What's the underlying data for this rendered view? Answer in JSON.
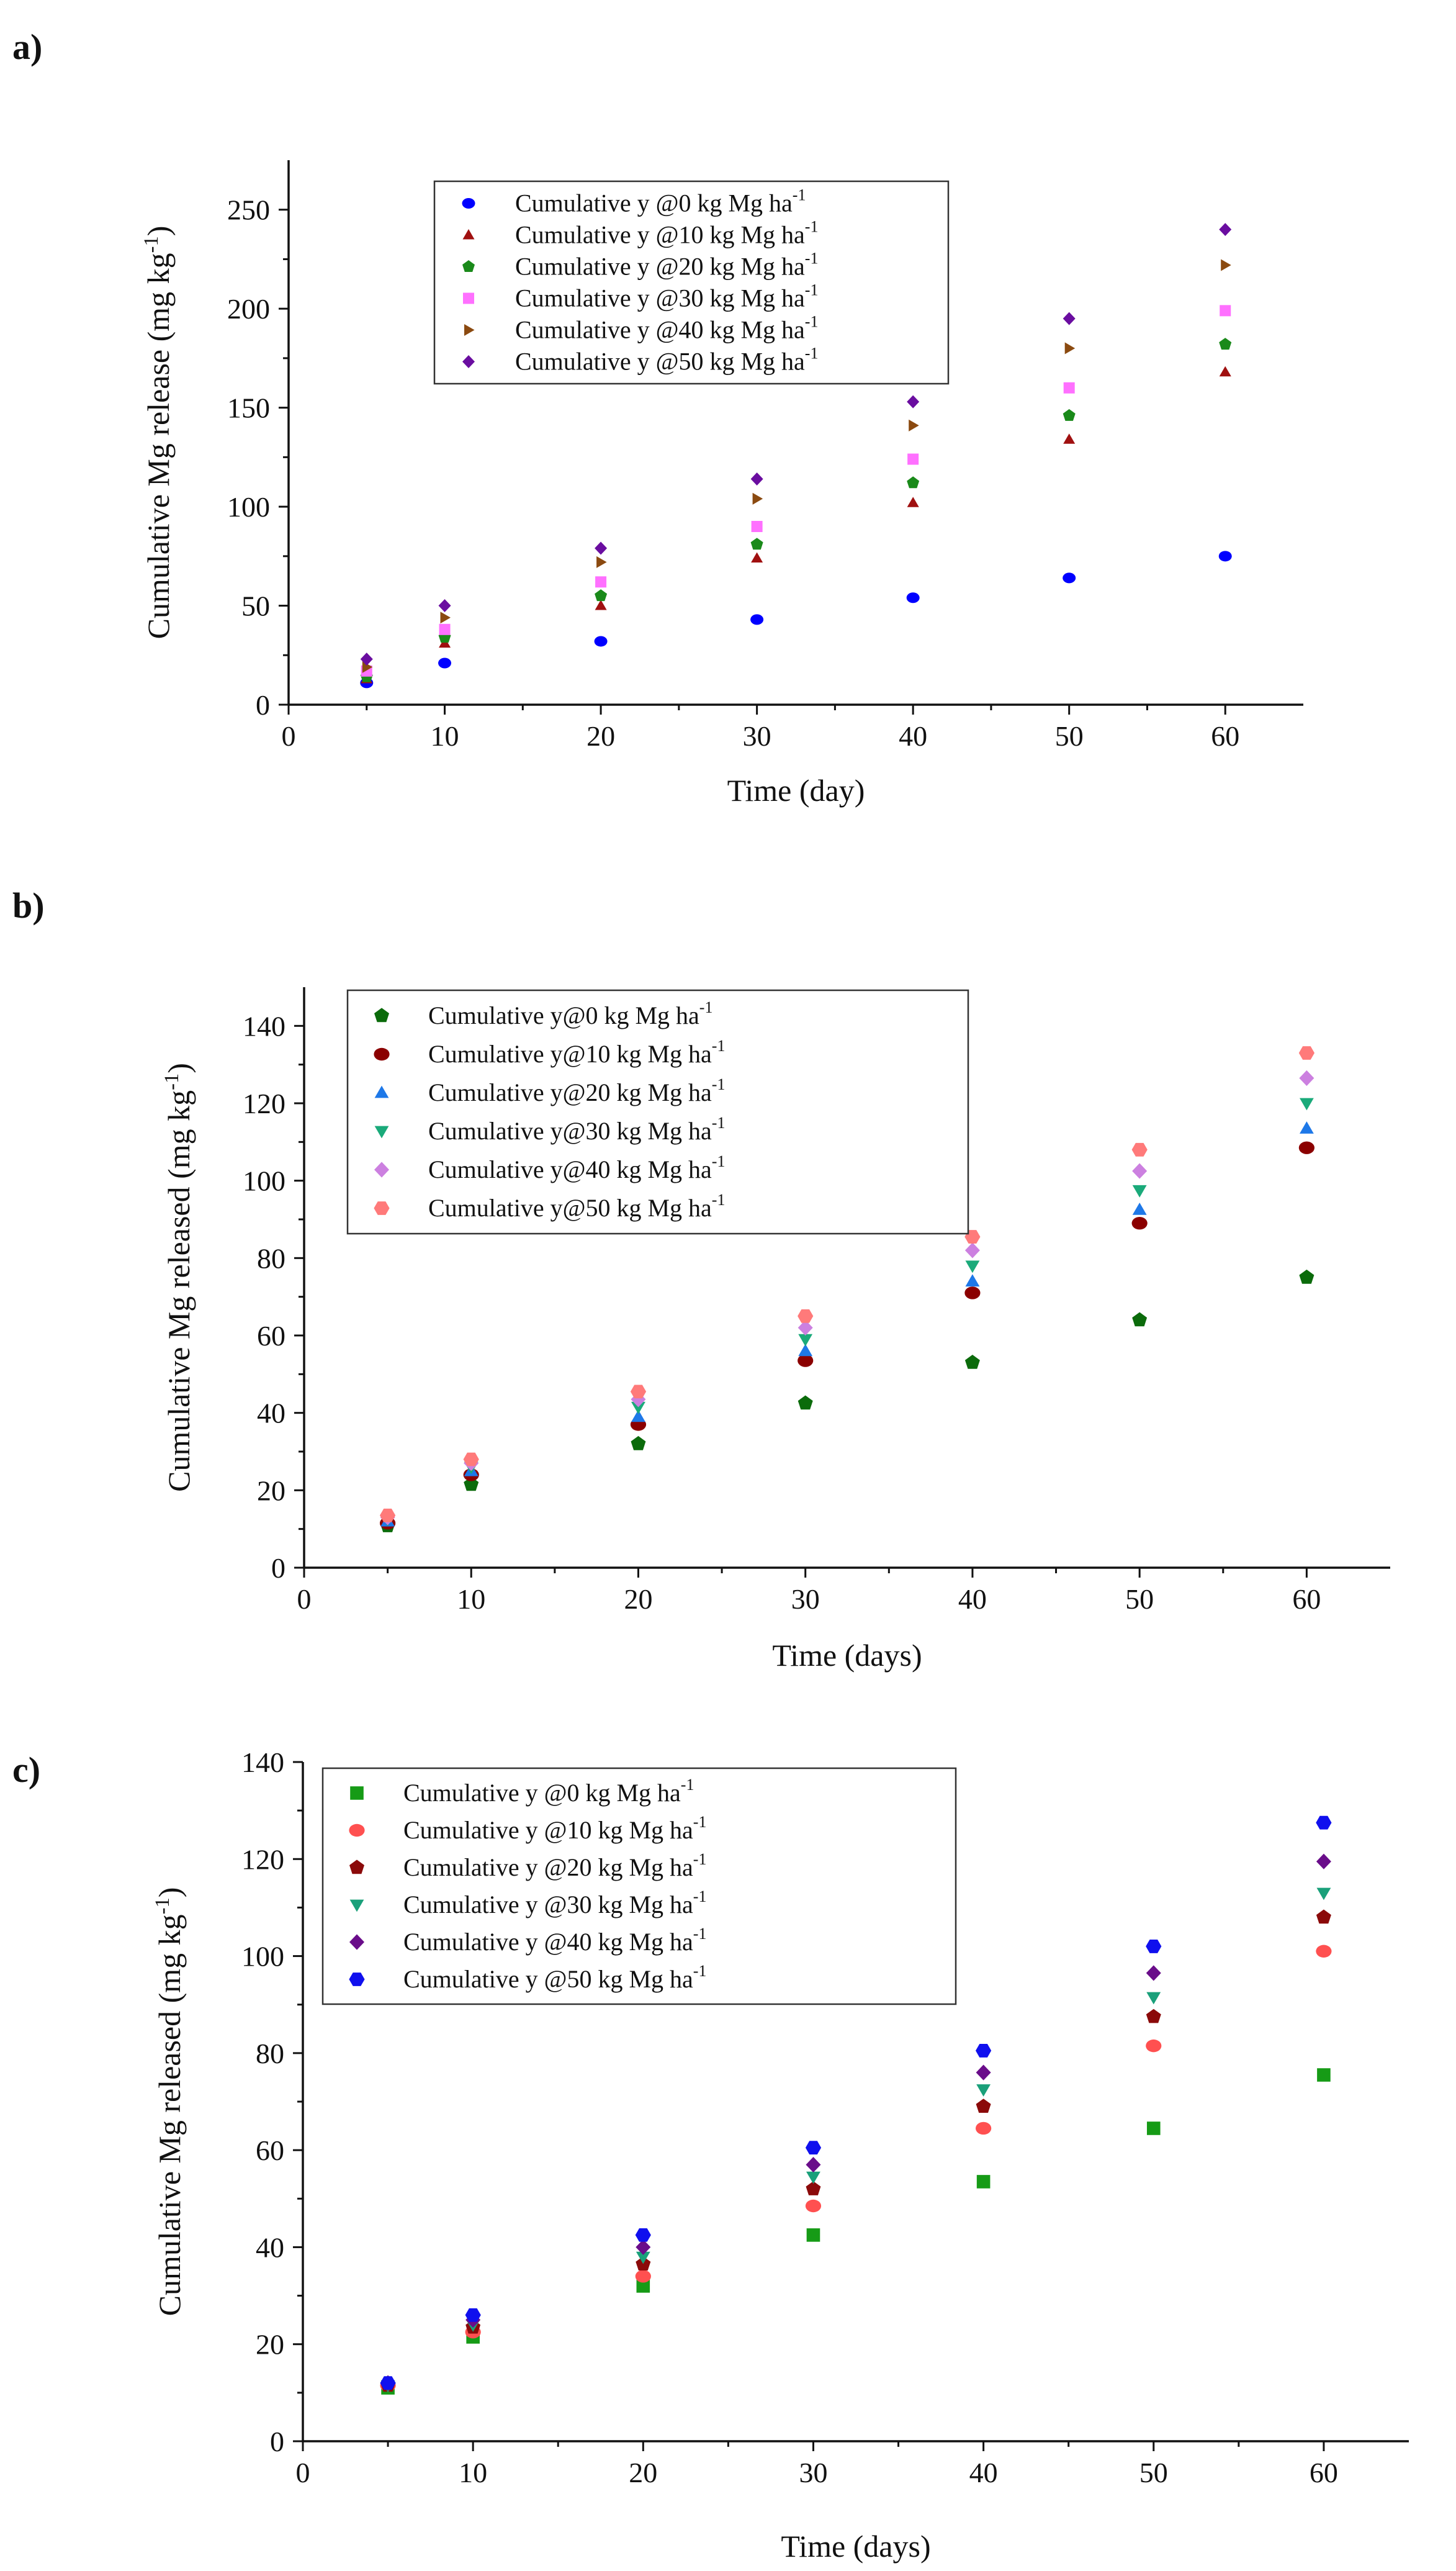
{
  "figure": {
    "description_labels": [
      "a)",
      "b)",
      "c)"
    ]
  },
  "chart_data": [
    {
      "panel": "a)",
      "type": "scatter",
      "title": "",
      "xlabel": "Time (day)",
      "ylabel": "Cumulative Mg release (mg kg",
      "ylabel_sup": "-1",
      "ylabel_end": ")",
      "xlim": [
        0,
        65
      ],
      "ylim": [
        0,
        275
      ],
      "xticks": [
        0,
        10,
        20,
        30,
        40,
        50,
        60
      ],
      "yticks": [
        0,
        50,
        100,
        150,
        200,
        250
      ],
      "legend_position": "top-center",
      "x": [
        5,
        10,
        20,
        30,
        40,
        50,
        60
      ],
      "series": [
        {
          "name": "Cumulative y @0 kg Mg ha",
          "sup": "-1",
          "marker": "circle",
          "color": "#0000ff",
          "values": [
            11,
            21,
            32,
            43,
            54,
            64,
            75
          ]
        },
        {
          "name": "Cumulative y @10 kg Mg ha",
          "sup": "-1",
          "marker": "triangle-up",
          "color": "#a01010",
          "values": [
            13,
            31,
            50,
            74,
            102,
            134,
            168
          ]
        },
        {
          "name": "Cumulative y @20 kg Mg ha",
          "sup": "-1",
          "marker": "pentagon",
          "color": "#1a8a1a",
          "values": [
            14,
            34,
            55,
            81,
            112,
            146,
            182
          ]
        },
        {
          "name": "Cumulative y @30 kg Mg ha",
          "sup": "-1",
          "marker": "square",
          "color": "#ff70ff",
          "values": [
            17,
            38,
            62,
            90,
            124,
            160,
            199
          ]
        },
        {
          "name": "Cumulative y @40 kg Mg ha",
          "sup": "-1",
          "marker": "triangle-right",
          "color": "#8b4a10",
          "values": [
            19,
            44,
            72,
            104,
            141,
            180,
            222
          ]
        },
        {
          "name": "Cumulative y @50 kg Mg ha",
          "sup": "-1",
          "marker": "diamond",
          "color": "#6a0da0",
          "values": [
            23,
            50,
            79,
            114,
            153,
            195,
            240
          ]
        }
      ]
    },
    {
      "panel": "b)",
      "type": "scatter",
      "title": "",
      "xlabel": "Time (days)",
      "ylabel": "Cumulative Mg released (mg kg",
      "ylabel_sup": "-1",
      "ylabel_end": ")",
      "xlim": [
        0,
        65
      ],
      "ylim": [
        0,
        150
      ],
      "xticks": [
        0,
        10,
        20,
        30,
        40,
        50,
        60
      ],
      "yticks": [
        0,
        20,
        40,
        60,
        80,
        100,
        120,
        140
      ],
      "legend_position": "top-left",
      "x": [
        5,
        10,
        20,
        30,
        40,
        50,
        60
      ],
      "series": [
        {
          "name": "Cumulative y@0 kg Mg ha",
          "sup": "-1",
          "marker": "pentagon",
          "color": "#0b6b0b",
          "values": [
            10.8,
            21.5,
            32,
            42.5,
            53,
            64,
            75
          ]
        },
        {
          "name": "Cumulative y@10 kg Mg ha",
          "sup": "-1",
          "marker": "circle",
          "color": "#8b0000",
          "values": [
            11.5,
            24,
            37,
            53.5,
            71,
            89,
            108.5
          ]
        },
        {
          "name": "Cumulative y@20 kg Mg ha",
          "sup": "-1",
          "marker": "triangle-up",
          "color": "#1e78e8",
          "values": [
            12,
            25,
            39,
            56,
            74,
            92.5,
            113.5
          ]
        },
        {
          "name": "Cumulative y@30 kg Mg ha",
          "sup": "-1",
          "marker": "triangle-down",
          "color": "#1aaa7a",
          "values": [
            12.5,
            26,
            41.5,
            59,
            78,
            97.5,
            120
          ]
        },
        {
          "name": "Cumulative y@40 kg Mg ha",
          "sup": "-1",
          "marker": "diamond",
          "color": "#cc80e0",
          "values": [
            13,
            27,
            43.5,
            62,
            82,
            102.5,
            126.5
          ]
        },
        {
          "name": "Cumulative y@50 kg Mg ha",
          "sup": "-1",
          "marker": "hexagon",
          "color": "#ff7a7a",
          "values": [
            13.5,
            28,
            45.5,
            65,
            85.5,
            108,
            133
          ]
        }
      ]
    },
    {
      "panel": "c)",
      "type": "scatter",
      "title": "",
      "xlabel": "Time (days)",
      "ylabel": "Cumulative Mg released (mg kg",
      "ylabel_sup": "-1",
      "ylabel_end": ")",
      "xlim": [
        0,
        65
      ],
      "ylim": [
        0,
        140
      ],
      "xticks": [
        0,
        10,
        20,
        30,
        40,
        50,
        60
      ],
      "yticks": [
        0,
        20,
        40,
        60,
        80,
        100,
        120,
        140
      ],
      "legend_position": "top-left",
      "x": [
        5,
        10,
        20,
        30,
        40,
        50,
        60
      ],
      "series": [
        {
          "name": "Cumulative y @0 kg Mg ha",
          "sup": "-1",
          "marker": "square",
          "color": "#169b16",
          "values": [
            11,
            21.5,
            32,
            42.5,
            53.5,
            64.5,
            75.5
          ]
        },
        {
          "name": "Cumulative y @10 kg Mg ha",
          "sup": "-1",
          "marker": "circle",
          "color": "#ff5050",
          "values": [
            11.5,
            22.5,
            34,
            48.5,
            64.5,
            81.5,
            101
          ]
        },
        {
          "name": "Cumulative y @20 kg Mg ha",
          "sup": "-1",
          "marker": "pentagon",
          "color": "#8b0a0a",
          "values": [
            11.5,
            23.5,
            36.5,
            52,
            69,
            87.5,
            108
          ]
        },
        {
          "name": "Cumulative y @30 kg Mg ha",
          "sup": "-1",
          "marker": "triangle-down",
          "color": "#1aa07a",
          "values": [
            11.5,
            24,
            38,
            54.5,
            72.5,
            91.5,
            113
          ]
        },
        {
          "name": "Cumulative y @40 kg Mg ha",
          "sup": "-1",
          "marker": "diamond",
          "color": "#6a0d8a",
          "values": [
            12,
            25,
            40,
            57,
            76,
            96.5,
            119.5
          ]
        },
        {
          "name": "Cumulative y @50 kg Mg ha",
          "sup": "-1",
          "marker": "hexagon",
          "color": "#1010ee",
          "values": [
            12,
            26,
            42.5,
            60.5,
            80.5,
            102,
            127.5
          ]
        }
      ]
    }
  ]
}
